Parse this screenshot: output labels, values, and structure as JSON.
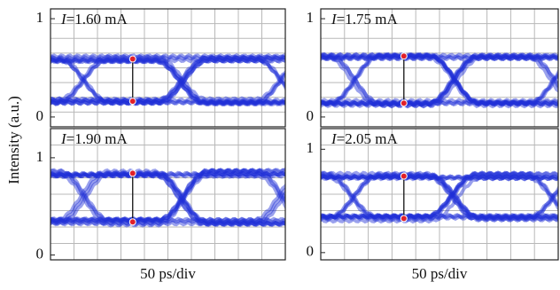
{
  "ylabel": "Intensity (a.u.)",
  "chart_data": [
    {
      "type": "eye",
      "annotation": "I=1.60 mA",
      "high": 0.59,
      "low": 0.16,
      "ylim": [
        -0.1,
        1.1
      ],
      "yticks": [
        0,
        1
      ],
      "color": "#1f2fd8",
      "marker_color": "#e0202a"
    },
    {
      "type": "eye",
      "annotation": "I=1.75 mA",
      "high": 0.62,
      "low": 0.14,
      "ylim": [
        -0.1,
        1.1
      ],
      "yticks": [
        0,
        1
      ],
      "color": "#1f2fd8",
      "marker_color": "#e0202a"
    },
    {
      "type": "eye",
      "annotation": "I=1.90 mA",
      "high": 0.84,
      "low": 0.34,
      "ylim": [
        -0.05,
        1.3
      ],
      "yticks": [
        0,
        1
      ],
      "color": "#1f2fd8",
      "marker_color": "#e0202a",
      "xlabel": "50 ps/div"
    },
    {
      "type": "eye",
      "annotation": "I=2.05 mA",
      "high": 0.74,
      "low": 0.33,
      "ylim": [
        -0.07,
        1.2
      ],
      "yticks": [
        0,
        1
      ],
      "color": "#1f2fd8",
      "marker_color": "#e0202a",
      "xlabel": "50 ps/div"
    }
  ]
}
